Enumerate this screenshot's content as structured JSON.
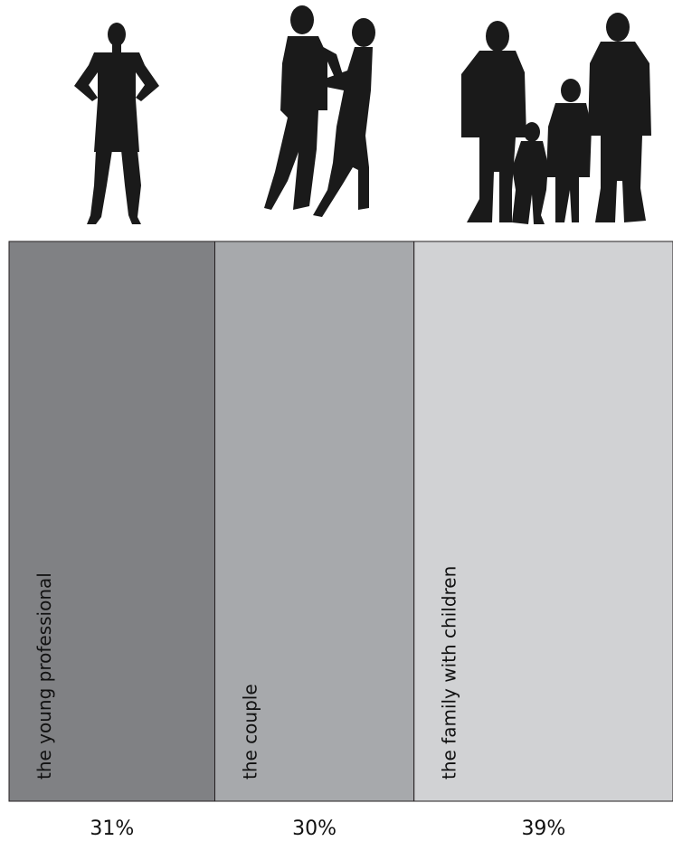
{
  "chart_data": {
    "type": "bar",
    "stacked_horizontal": true,
    "categories": [
      "the young professional",
      "the couple",
      "the family with children"
    ],
    "values": [
      31,
      30,
      39
    ],
    "value_labels": [
      "31%",
      "30%",
      "39%"
    ],
    "icons": [
      "young-professional-silhouette-icon",
      "couple-silhouette-icon",
      "family-silhouette-icon"
    ],
    "colors": [
      "#808184",
      "#a7a9ac",
      "#d1d2d4"
    ]
  }
}
